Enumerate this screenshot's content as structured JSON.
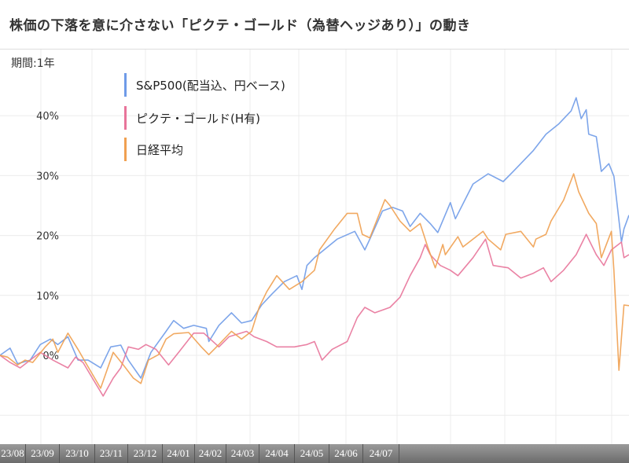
{
  "title": "株価の下落を意に介さない「ピクテ・ゴールド（為替ヘッジあり）」の動き",
  "chart_data": {
    "type": "line",
    "title": "株価の下落を意に介さない「ピクテ・ゴールド（為替ヘッジあり）」の動き",
    "period_label": "期間:1年",
    "xlabel": "",
    "ylabel": "",
    "x_unit": "trading day index",
    "xlim": [
      0,
      250
    ],
    "ylim": [
      -15,
      51
    ],
    "y_ticks": [
      0,
      10,
      20,
      30,
      40
    ],
    "y_tick_labels": [
      "0%",
      "10%",
      "20%",
      "30%",
      "40%"
    ],
    "x_tick_labels": [
      "23/08",
      "23/09",
      "23/10",
      "23/11",
      "23/12",
      "24/01",
      "24/02",
      "24/03",
      "24/04",
      "24/05",
      "24/06",
      "24/07",
      ""
    ],
    "grid": true,
    "legend_position": "top-left",
    "series": [
      {
        "name": "S&P500(配当込、円ベース)",
        "color": "#6f9be8",
        "points": [
          [
            0,
            0
          ],
          [
            4,
            1.2
          ],
          [
            7,
            -1.4
          ],
          [
            12,
            -0.8
          ],
          [
            16,
            1.8
          ],
          [
            20,
            2.7
          ],
          [
            23,
            1.8
          ],
          [
            27,
            3.1
          ],
          [
            31,
            -0.8
          ],
          [
            35,
            -0.8
          ],
          [
            40,
            -2.1
          ],
          [
            44,
            1.4
          ],
          [
            48,
            1.7
          ],
          [
            51,
            -0.8
          ],
          [
            56,
            -3.8
          ],
          [
            60,
            0.5
          ],
          [
            66,
            4
          ],
          [
            69,
            5.8
          ],
          [
            73,
            4.5
          ],
          [
            77,
            5
          ],
          [
            82,
            4.5
          ],
          [
            83,
            2.3
          ],
          [
            87,
            5
          ],
          [
            92,
            7.1
          ],
          [
            96,
            5.4
          ],
          [
            100,
            5.8
          ],
          [
            104,
            8.4
          ],
          [
            108,
            10.2
          ],
          [
            113,
            12.3
          ],
          [
            118,
            13.3
          ],
          [
            120,
            11
          ],
          [
            122,
            15
          ],
          [
            125,
            16.3
          ],
          [
            134,
            19.4
          ],
          [
            141,
            20.7
          ],
          [
            145,
            17.6
          ],
          [
            147,
            19.4
          ],
          [
            152,
            24.1
          ],
          [
            156,
            24.7
          ],
          [
            160,
            24.1
          ],
          [
            163,
            21.5
          ],
          [
            167,
            23.7
          ],
          [
            171,
            22
          ],
          [
            174,
            20.5
          ],
          [
            179,
            25.5
          ],
          [
            181,
            22.8
          ],
          [
            188,
            28.6
          ],
          [
            194,
            30.3
          ],
          [
            200,
            29
          ],
          [
            204,
            30.7
          ],
          [
            212,
            34.2
          ],
          [
            217,
            36.9
          ],
          [
            222,
            38.6
          ],
          [
            227,
            40.8
          ],
          [
            229,
            43
          ],
          [
            231,
            39.5
          ],
          [
            233,
            41
          ],
          [
            234,
            36.9
          ],
          [
            237,
            36.5
          ],
          [
            239,
            30.7
          ],
          [
            242,
            32
          ],
          [
            244,
            29.9
          ],
          [
            247,
            18.9
          ],
          [
            248,
            21.1
          ],
          [
            250,
            23.4
          ]
        ]
      },
      {
        "name": "ピクテ・ゴールド(H有)",
        "color": "#e8749a",
        "points": [
          [
            0,
            0
          ],
          [
            4,
            -1.2
          ],
          [
            8,
            -2.1
          ],
          [
            12,
            -0.8
          ],
          [
            16,
            0.5
          ],
          [
            21,
            -0.8
          ],
          [
            27,
            -2.1
          ],
          [
            30,
            -0.3
          ],
          [
            33,
            -1.2
          ],
          [
            38,
            -4.7
          ],
          [
            41,
            -6.8
          ],
          [
            45,
            -3.8
          ],
          [
            48,
            -2.1
          ],
          [
            51,
            1.4
          ],
          [
            55,
            1
          ],
          [
            58,
            1.8
          ],
          [
            62,
            1
          ],
          [
            67,
            -1.6
          ],
          [
            71,
            0.5
          ],
          [
            77,
            3.7
          ],
          [
            81,
            3.7
          ],
          [
            87,
            1.4
          ],
          [
            91,
            3.1
          ],
          [
            98,
            4
          ],
          [
            101,
            3.1
          ],
          [
            106,
            2.3
          ],
          [
            110,
            1.4
          ],
          [
            117,
            1.4
          ],
          [
            122,
            1.8
          ],
          [
            125,
            2.3
          ],
          [
            128,
            -0.8
          ],
          [
            132,
            1
          ],
          [
            138,
            2.3
          ],
          [
            142,
            6.3
          ],
          [
            145,
            8
          ],
          [
            149,
            7.1
          ],
          [
            155,
            8
          ],
          [
            159,
            9.7
          ],
          [
            163,
            13.3
          ],
          [
            167,
            16.3
          ],
          [
            169,
            18.5
          ],
          [
            171,
            16.8
          ],
          [
            175,
            15
          ],
          [
            179,
            14.2
          ],
          [
            182,
            13.3
          ],
          [
            188,
            16.3
          ],
          [
            193,
            19.4
          ],
          [
            196,
            15
          ],
          [
            202,
            14.6
          ],
          [
            207,
            12.9
          ],
          [
            212,
            13.7
          ],
          [
            216,
            14.6
          ],
          [
            219,
            12.3
          ],
          [
            224,
            14.2
          ],
          [
            229,
            16.8
          ],
          [
            233,
            20.2
          ],
          [
            237,
            16.8
          ],
          [
            240,
            15
          ],
          [
            243,
            17.6
          ],
          [
            247,
            18.9
          ],
          [
            248,
            16.3
          ],
          [
            250,
            16.8
          ]
        ]
      },
      {
        "name": "日経平均",
        "color": "#f0a050",
        "points": [
          [
            0,
            0
          ],
          [
            3,
            -0.3
          ],
          [
            7,
            -1.6
          ],
          [
            10,
            -0.8
          ],
          [
            13,
            -1.2
          ],
          [
            18,
            1.4
          ],
          [
            21,
            2.7
          ],
          [
            23,
            0.5
          ],
          [
            27,
            3.7
          ],
          [
            31,
            1
          ],
          [
            34,
            -1.2
          ],
          [
            40,
            -5.5
          ],
          [
            45,
            0.5
          ],
          [
            49,
            -1.6
          ],
          [
            53,
            -3.8
          ],
          [
            56,
            -4.7
          ],
          [
            59,
            -0.8
          ],
          [
            63,
            0.1
          ],
          [
            66,
            2.7
          ],
          [
            69,
            3.6
          ],
          [
            75,
            3.8
          ],
          [
            80,
            1.4
          ],
          [
            83,
            0.1
          ],
          [
            87,
            1.8
          ],
          [
            92,
            4
          ],
          [
            96,
            2.7
          ],
          [
            100,
            4
          ],
          [
            103,
            8
          ],
          [
            106,
            10.6
          ],
          [
            110,
            13.3
          ],
          [
            115,
            11
          ],
          [
            120,
            12.3
          ],
          [
            125,
            14.2
          ],
          [
            127,
            17.6
          ],
          [
            133,
            21.1
          ],
          [
            138,
            23.7
          ],
          [
            142,
            23.7
          ],
          [
            144,
            20.2
          ],
          [
            147,
            19.6
          ],
          [
            150,
            22.8
          ],
          [
            153,
            26
          ],
          [
            155,
            25
          ],
          [
            159,
            22.4
          ],
          [
            163,
            20.7
          ],
          [
            167,
            22
          ],
          [
            170,
            18.1
          ],
          [
            173,
            14.6
          ],
          [
            176,
            18.5
          ],
          [
            177,
            16.8
          ],
          [
            182,
            19.8
          ],
          [
            184,
            18.1
          ],
          [
            192,
            20.7
          ],
          [
            194,
            19.4
          ],
          [
            199,
            17.6
          ],
          [
            201,
            20.2
          ],
          [
            207,
            20.7
          ],
          [
            212,
            18.1
          ],
          [
            213,
            19.4
          ],
          [
            217,
            20.2
          ],
          [
            219,
            22.4
          ],
          [
            224,
            25.9
          ],
          [
            228,
            30.3
          ],
          [
            230,
            27.3
          ],
          [
            234,
            23.7
          ],
          [
            237,
            22
          ],
          [
            239,
            16.3
          ],
          [
            243,
            20.7
          ],
          [
            244,
            14.2
          ],
          [
            246,
            -2.5
          ],
          [
            248,
            8.4
          ],
          [
            250,
            8.3
          ]
        ]
      }
    ]
  }
}
